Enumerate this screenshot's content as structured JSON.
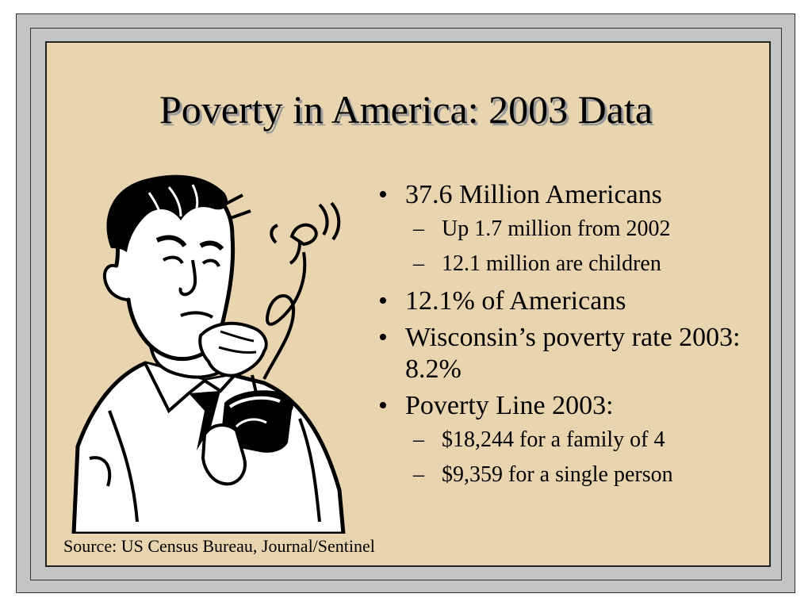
{
  "slide": {
    "title": "Poverty in America: 2003 Data",
    "bullets": [
      {
        "text": "37.6 Million Americans",
        "sub": [
          "Up 1.7 million from 2002",
          "12.1 million are children"
        ]
      },
      {
        "text": "12.1% of Americans",
        "sub": []
      },
      {
        "text": "Wisconsin’s poverty rate 2003: 8.2%",
        "sub": []
      },
      {
        "text": "Poverty Line 2003:",
        "sub": [
          "$18,244 for a family of 4",
          "$9,359 for a single person"
        ]
      }
    ],
    "source": "Source: US Census Bureau, Journal/Sentinel",
    "bullet_marker": "•",
    "sub_marker": "–"
  },
  "colors": {
    "background": "#e8d5b0",
    "frame": "#c4c4c4",
    "title_shadow": "#9a9a9a"
  },
  "illustration": {
    "icon": "man-empty-wallet-icon"
  }
}
